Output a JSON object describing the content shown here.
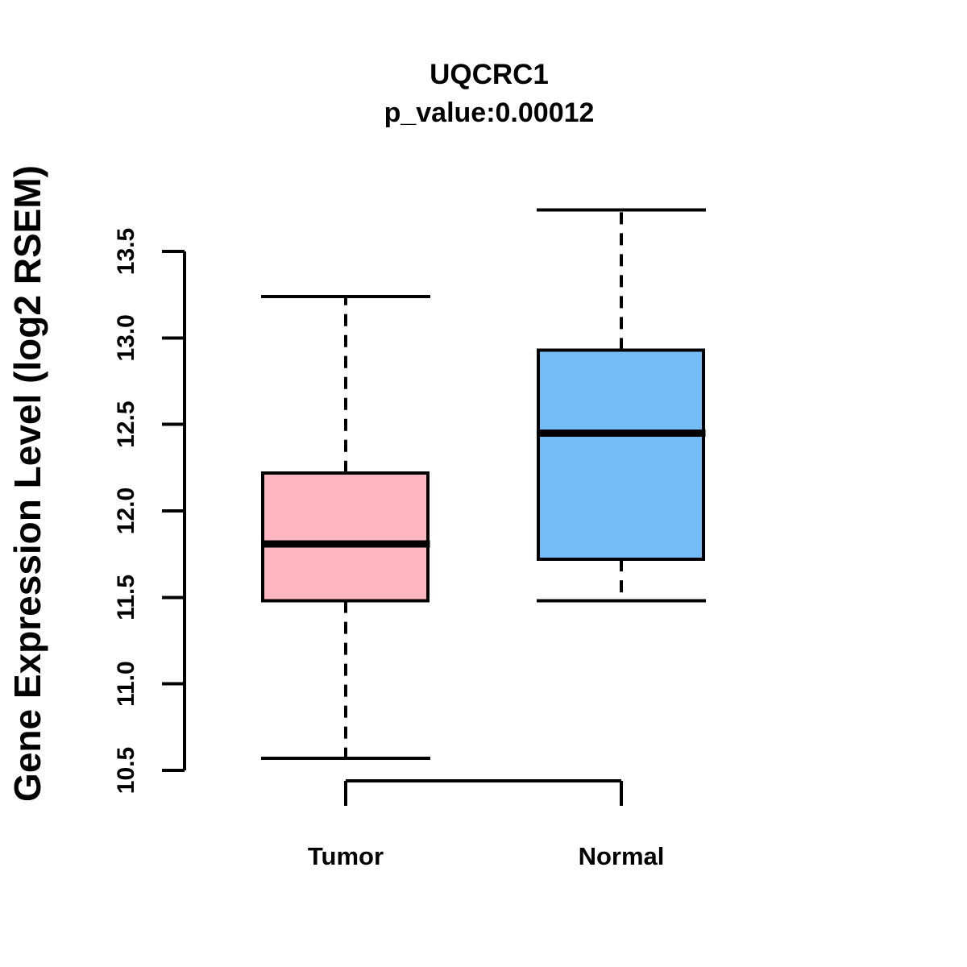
{
  "chart_data": {
    "type": "boxplot",
    "title": "UQCRC1",
    "subtitle": "p_value:0.00012",
    "ylabel": "Gene Expression Level (log2 RSEM)",
    "xlabel": "",
    "categories": [
      "Tumor",
      "Normal"
    ],
    "ytick_labels": [
      "10.5",
      "11.0",
      "11.5",
      "12.0",
      "12.5",
      "13.0",
      "13.5"
    ],
    "ylim": [
      10.4,
      13.85
    ],
    "grid": false,
    "legend": "none",
    "series": [
      {
        "name": "Tumor",
        "fill_color": "#FFB6C1",
        "lower_whisker": 10.57,
        "q1": 11.48,
        "median": 11.81,
        "q3": 12.22,
        "upper_whisker": 13.24
      },
      {
        "name": "Normal",
        "fill_color": "#72BDF7",
        "lower_whisker": 11.48,
        "q1": 11.72,
        "median": 12.45,
        "q3": 12.93,
        "upper_whisker": 13.74
      }
    ],
    "stroke_color": "#000000",
    "background_color": "#FFFFFF"
  }
}
